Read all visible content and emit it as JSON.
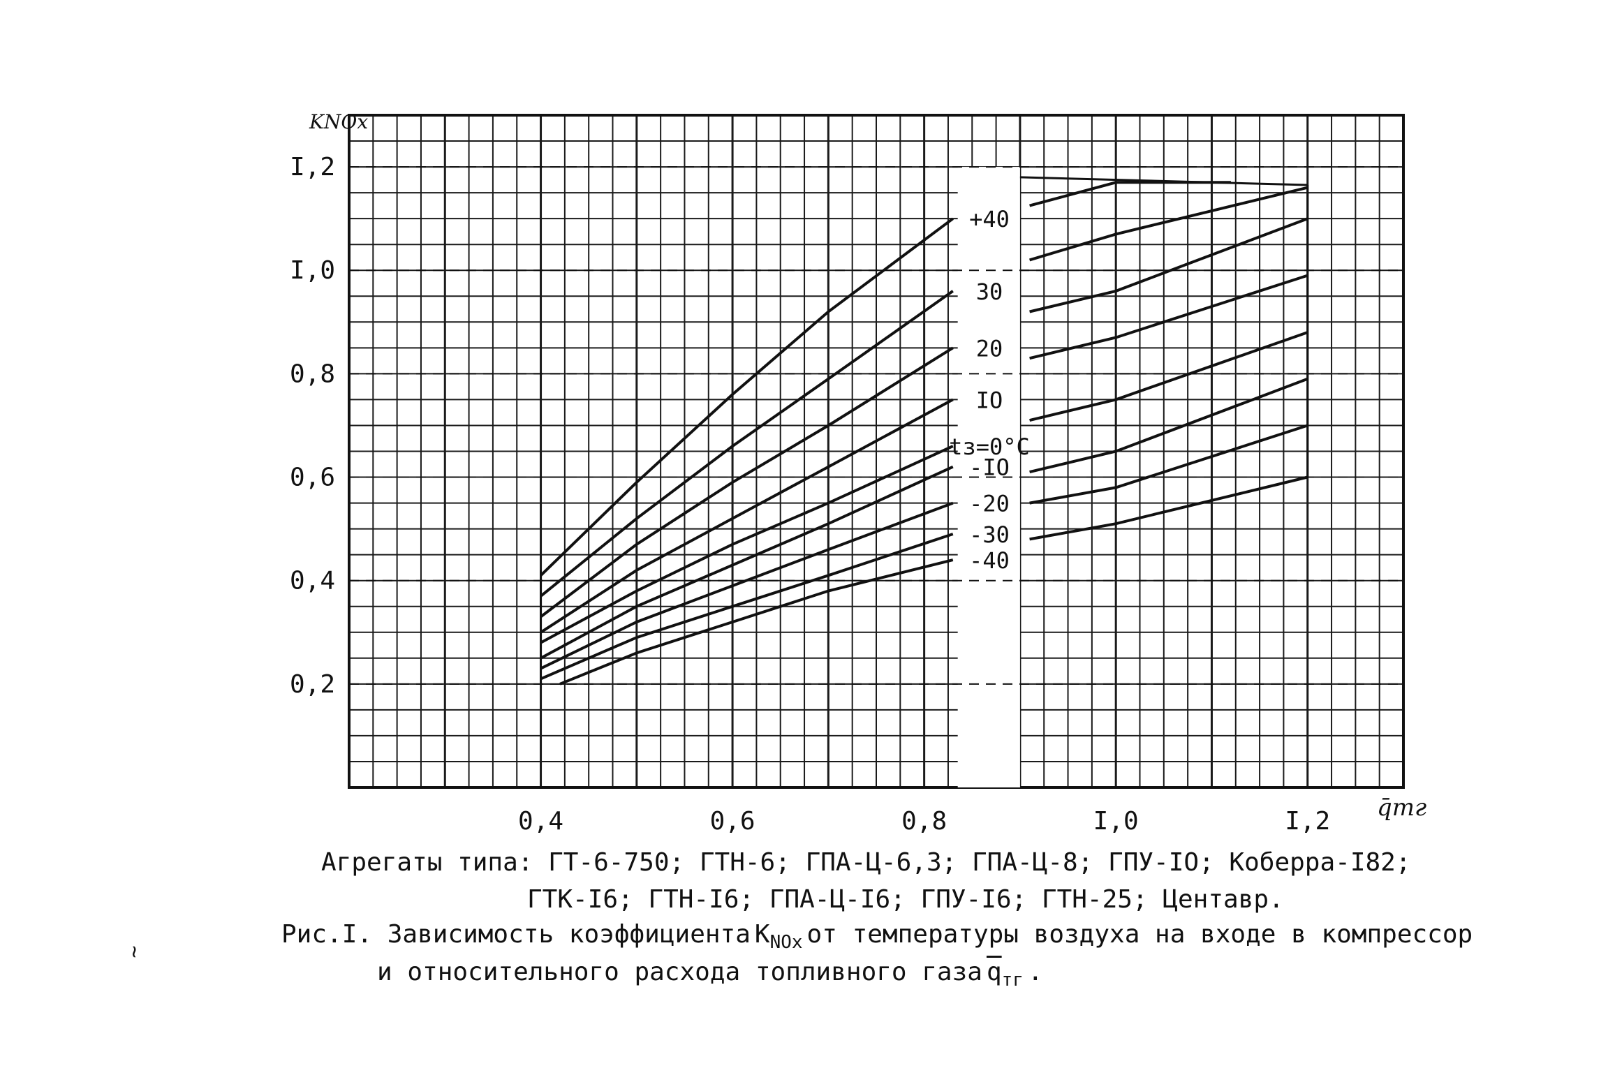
{
  "page_mark": "~",
  "chart_data": {
    "type": "line",
    "xlabel": "q̄тг",
    "ylabel": "KNOx",
    "xlim": [
      0.2,
      1.3
    ],
    "ylim": [
      0.0,
      1.3
    ],
    "grid": true,
    "x_ticks": [
      {
        "value": 0.4,
        "label": "0,4"
      },
      {
        "value": 0.6,
        "label": "0,6"
      },
      {
        "value": 0.8,
        "label": "0,8"
      },
      {
        "value": 1.0,
        "label": "I,0"
      },
      {
        "value": 1.2,
        "label": "I,2"
      }
    ],
    "y_ticks": [
      {
        "value": 0.2,
        "label": "0,2"
      },
      {
        "value": 0.4,
        "label": "0,4"
      },
      {
        "value": 0.6,
        "label": "0,6"
      },
      {
        "value": 0.8,
        "label": "0,8"
      },
      {
        "value": 1.0,
        "label": "I,0"
      },
      {
        "value": 1.2,
        "label": "I,2"
      }
    ],
    "series": [
      {
        "name": "+40",
        "label": "+40",
        "left": [
          [
            0.4,
            0.41
          ],
          [
            0.5,
            0.59
          ],
          [
            0.6,
            0.76
          ],
          [
            0.7,
            0.92
          ],
          [
            0.83,
            1.1
          ]
        ],
        "right": [
          [
            0.91,
            1.125
          ],
          [
            1.0,
            1.17
          ],
          [
            1.12,
            1.17
          ]
        ]
      },
      {
        "name": "30",
        "label": "30",
        "left": [
          [
            0.4,
            0.37
          ],
          [
            0.5,
            0.52
          ],
          [
            0.6,
            0.66
          ],
          [
            0.7,
            0.79
          ],
          [
            0.83,
            0.96
          ]
        ],
        "right": [
          [
            0.91,
            1.02
          ],
          [
            1.0,
            1.07
          ],
          [
            1.2,
            1.16
          ]
        ]
      },
      {
        "name": "20",
        "label": "20",
        "left": [
          [
            0.4,
            0.33
          ],
          [
            0.5,
            0.47
          ],
          [
            0.6,
            0.59
          ],
          [
            0.7,
            0.7
          ],
          [
            0.83,
            0.85
          ]
        ],
        "right": [
          [
            0.91,
            0.92
          ],
          [
            1.0,
            0.96
          ],
          [
            1.2,
            1.1
          ]
        ]
      },
      {
        "name": "10",
        "label": "IO",
        "left": [
          [
            0.4,
            0.3
          ],
          [
            0.5,
            0.42
          ],
          [
            0.6,
            0.52
          ],
          [
            0.7,
            0.62
          ],
          [
            0.83,
            0.75
          ]
        ],
        "right": [
          [
            0.91,
            0.83
          ],
          [
            1.0,
            0.87
          ],
          [
            1.2,
            0.99
          ]
        ]
      },
      {
        "name": "0",
        "label": "tз=0°C",
        "left": [
          [
            0.4,
            0.28
          ],
          [
            0.5,
            0.38
          ],
          [
            0.6,
            0.47
          ],
          [
            0.7,
            0.55
          ],
          [
            0.83,
            0.66
          ]
        ],
        "right": [
          [
            0.91,
            0.71
          ],
          [
            1.0,
            0.75
          ],
          [
            1.2,
            0.88
          ]
        ]
      },
      {
        "name": "-10",
        "label": "-IO",
        "left": [
          [
            0.4,
            0.25
          ],
          [
            0.5,
            0.35
          ],
          [
            0.6,
            0.43
          ],
          [
            0.7,
            0.51
          ],
          [
            0.83,
            0.62
          ]
        ],
        "right": [
          [
            0.91,
            0.61
          ],
          [
            1.0,
            0.65
          ],
          [
            1.2,
            0.79
          ]
        ]
      },
      {
        "name": "-20",
        "label": "-20",
        "left": [
          [
            0.4,
            0.23
          ],
          [
            0.5,
            0.32
          ],
          [
            0.6,
            0.39
          ],
          [
            0.7,
            0.46
          ],
          [
            0.83,
            0.55
          ]
        ],
        "right": [
          [
            0.91,
            0.55
          ],
          [
            1.0,
            0.58
          ],
          [
            1.2,
            0.7
          ]
        ]
      },
      {
        "name": "-30",
        "label": "-30",
        "left": [
          [
            0.4,
            0.21
          ],
          [
            0.5,
            0.29
          ],
          [
            0.6,
            0.35
          ],
          [
            0.7,
            0.41
          ],
          [
            0.83,
            0.49
          ]
        ],
        "right": [
          [
            0.91,
            0.48
          ],
          [
            1.0,
            0.51
          ],
          [
            1.2,
            0.6
          ]
        ]
      },
      {
        "name": "-40",
        "label": "-40",
        "left": [
          [
            0.42,
            0.2
          ],
          [
            0.5,
            0.26
          ],
          [
            0.6,
            0.32
          ],
          [
            0.7,
            0.38
          ],
          [
            0.83,
            0.44
          ]
        ],
        "right": []
      }
    ]
  },
  "caption": {
    "aggregates_line1": "Агрегаты типа: ГТ-6-750; ГТН-6; ГПА-Ц-6,3; ГПА-Ц-8; ГПУ-IO; Коберра-I82;",
    "aggregates_line2": "ГТК-I6; ГТН-I6; ГПА-Ц-I6; ГПУ-I6; ГТН-25; Центавр.",
    "figure_prefix": "Рис.I. Зависимость коэффициента",
    "coef_main": "K",
    "coef_sub": "NOx",
    "figure_suffix": "от температуры воздуха на входе в компрессор",
    "figure_line2_prefix": "и относительного расхода топливного газа",
    "flow_main": "q",
    "flow_sub": "тг",
    "figure_line2_end": "."
  }
}
